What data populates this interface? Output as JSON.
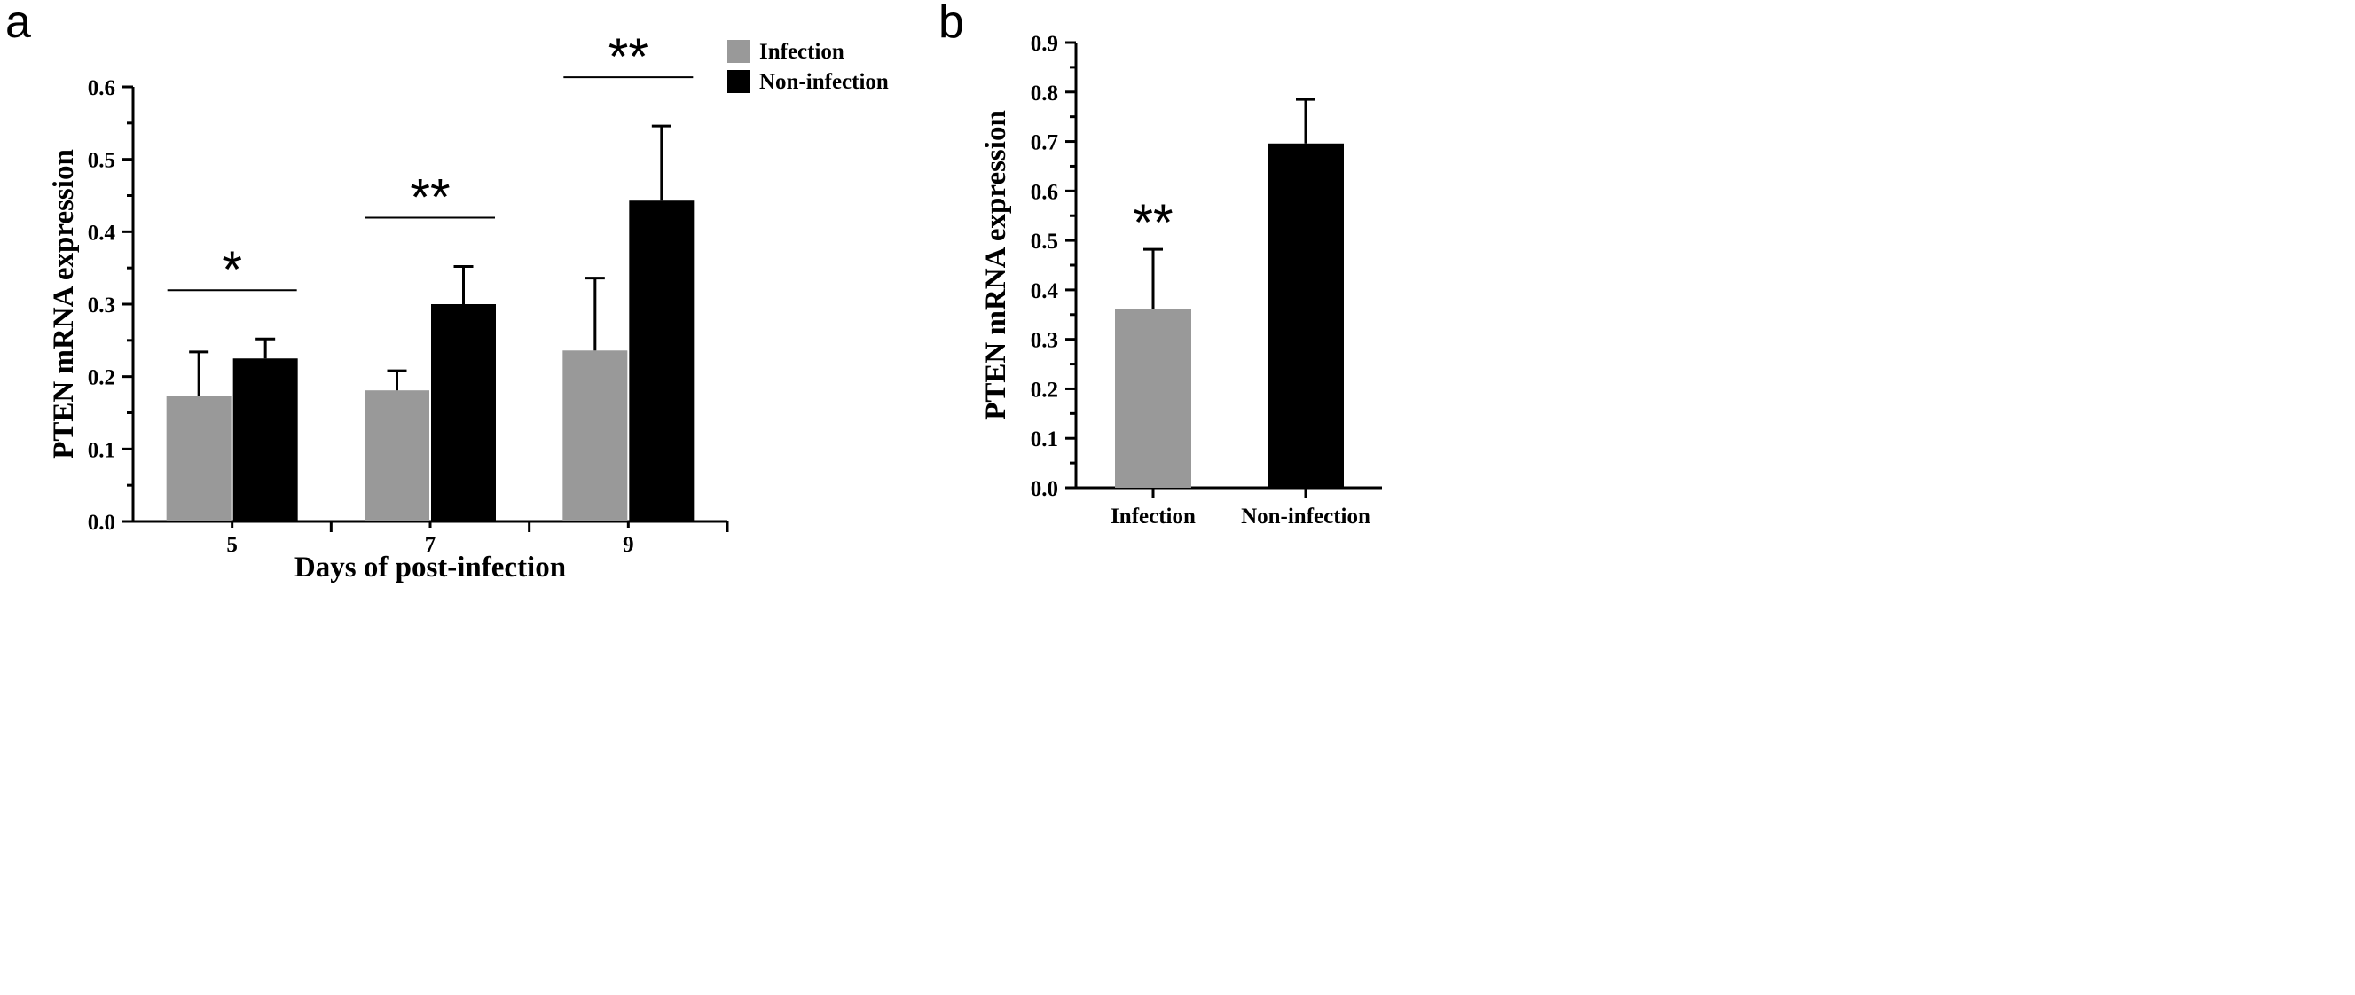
{
  "chart_data": [
    {
      "panel_label": "a",
      "type": "bar",
      "categories": [
        "5",
        "7",
        "9"
      ],
      "series": [
        {
          "name": "Infection",
          "color": "#999999",
          "values": [
            0.173,
            0.181,
            0.236
          ],
          "errors": [
            0.061,
            0.027,
            0.1
          ]
        },
        {
          "name": "Non-infection",
          "color": "#000000",
          "values": [
            0.225,
            0.3,
            0.443
          ],
          "errors": [
            0.027,
            0.052,
            0.103
          ]
        }
      ],
      "significance": [
        "*",
        "**",
        "**"
      ],
      "xlabel": "Days of post-infection",
      "ylabel": "PTEN mRNA expression",
      "ylim": [
        0,
        0.6
      ],
      "yticks": [
        "0.0",
        "0.1",
        "0.2",
        "0.3",
        "0.4",
        "0.5",
        "0.6"
      ],
      "legend": [
        "Infection",
        "Non-infection"
      ],
      "legend_position": "top-right"
    },
    {
      "panel_label": "b",
      "type": "bar",
      "categories": [
        "Infection",
        "Non-infection"
      ],
      "values": [
        0.361,
        0.696
      ],
      "errors": [
        0.121,
        0.089
      ],
      "colors": [
        "#999999",
        "#000000"
      ],
      "significance": [
        "**",
        ""
      ],
      "xlabel": "",
      "ylabel": "PTEN mRNA expression",
      "ylim": [
        0,
        0.9
      ],
      "yticks": [
        "0.0",
        "0.1",
        "0.2",
        "0.3",
        "0.4",
        "0.5",
        "0.6",
        "0.7",
        "0.8",
        "0.9"
      ]
    }
  ]
}
